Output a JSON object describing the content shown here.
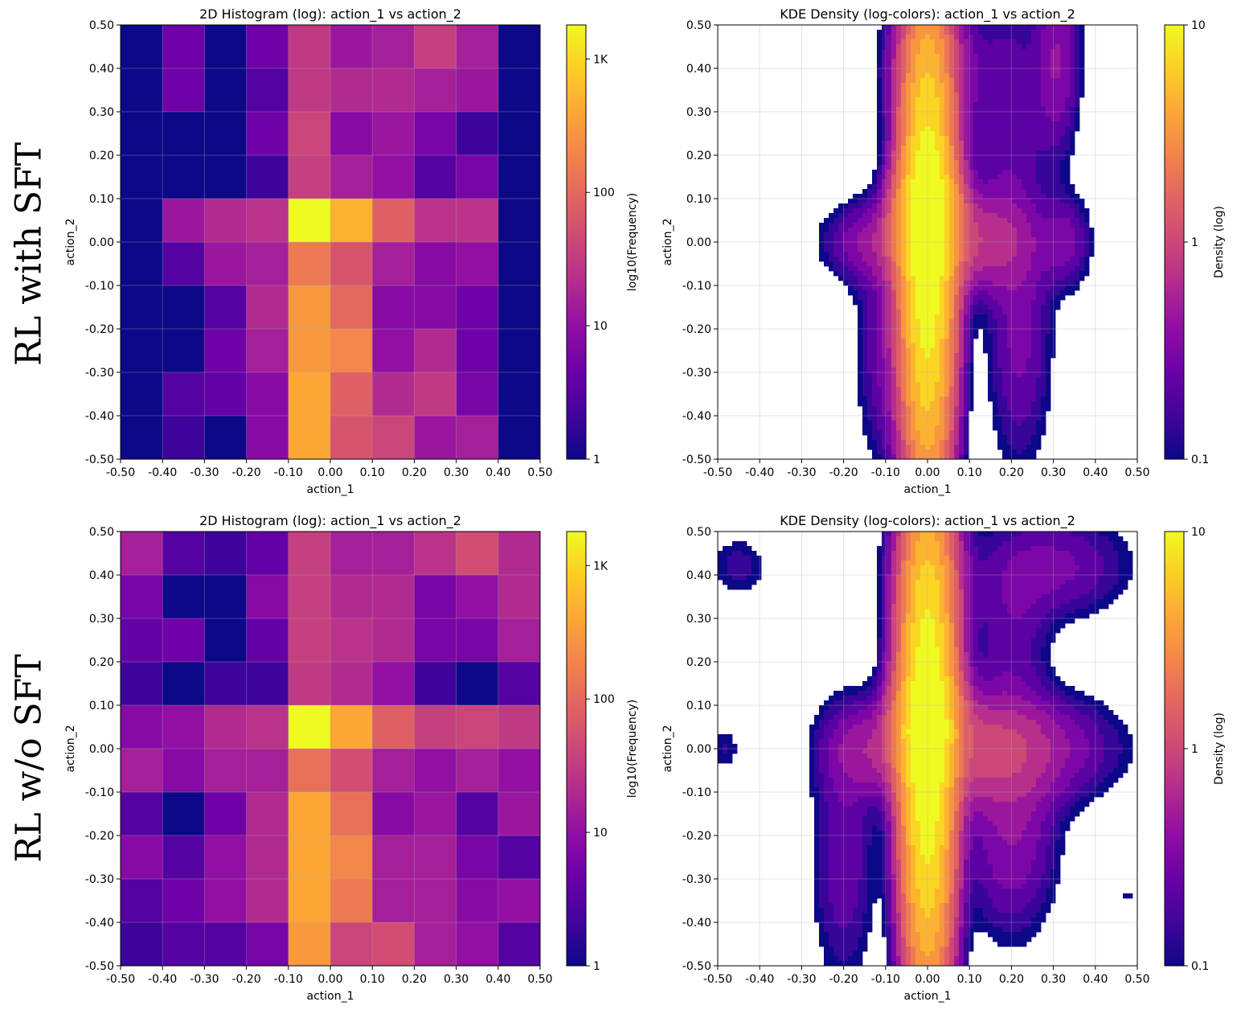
{
  "rows": [
    {
      "label": "RL with SFT"
    },
    {
      "label": "RL w/o SFT"
    }
  ],
  "colormap": "plasma",
  "chart_data": [
    {
      "type": "heatmap",
      "title": "2D Histogram (log): action_1 vs action_2",
      "xlabel": "action_1",
      "ylabel": "action_2",
      "xlim": [
        -0.5,
        0.5
      ],
      "ylim": [
        -0.5,
        0.5
      ],
      "x_ticks": [
        "-0.50",
        "-0.40",
        "-0.30",
        "-0.20",
        "-0.10",
        "0.00",
        "0.10",
        "0.20",
        "0.30",
        "0.40",
        "0.50"
      ],
      "y_ticks": [
        "0.50",
        "0.40",
        "0.30",
        "0.20",
        "0.10",
        "0.00",
        "-0.10",
        "-0.20",
        "-0.30",
        "-0.40",
        "-0.50"
      ],
      "grid": true,
      "colorbar": {
        "label": "log10(Frequency)",
        "scale": "log",
        "ticks": [
          "1",
          "10",
          "100",
          "1K"
        ],
        "range": [
          1,
          1800
        ]
      },
      "x_bins": [
        -0.45,
        -0.35,
        -0.25,
        -0.15,
        -0.05,
        0.05,
        0.15,
        0.25,
        0.35,
        0.45
      ],
      "y_bins_top_to_bottom": [
        0.45,
        0.35,
        0.25,
        0.15,
        0.05,
        -0.05,
        -0.15,
        -0.25,
        -0.35,
        -0.45
      ],
      "counts": [
        [
          1,
          5,
          1,
          5,
          30,
          12,
          15,
          35,
          15,
          1
        ],
        [
          1,
          5,
          1,
          3,
          30,
          20,
          20,
          15,
          12,
          1
        ],
        [
          1,
          1,
          1,
          5,
          40,
          8,
          12,
          6,
          2,
          1
        ],
        [
          1,
          1,
          1,
          2,
          35,
          15,
          10,
          3,
          6,
          1
        ],
        [
          1,
          12,
          20,
          25,
          1800,
          500,
          80,
          25,
          25,
          1
        ],
        [
          1,
          3,
          12,
          15,
          150,
          60,
          15,
          8,
          10,
          1
        ],
        [
          1,
          1,
          3,
          20,
          300,
          100,
          8,
          8,
          5,
          1
        ],
        [
          1,
          1,
          5,
          15,
          300,
          200,
          10,
          20,
          5,
          1
        ],
        [
          1,
          3,
          4,
          8,
          400,
          80,
          20,
          30,
          6,
          1
        ],
        [
          1,
          2,
          1,
          8,
          400,
          60,
          40,
          12,
          15,
          1
        ]
      ]
    },
    {
      "type": "heatmap",
      "title": "KDE Density (log-colors): action_1 vs action_2",
      "xlabel": "action_1",
      "ylabel": "action_2",
      "xlim": [
        -0.5,
        0.5
      ],
      "ylim": [
        -0.5,
        0.5
      ],
      "x_ticks": [
        "-0.50",
        "-0.40",
        "-0.30",
        "-0.20",
        "-0.10",
        "0.00",
        "0.10",
        "0.20",
        "0.30",
        "0.40",
        "0.50"
      ],
      "y_ticks": [
        "0.50",
        "0.40",
        "0.30",
        "0.20",
        "0.10",
        "0.00",
        "-0.10",
        "-0.20",
        "-0.30",
        "-0.40",
        "-0.50"
      ],
      "grid": true,
      "colorbar": {
        "label": "Density (log)",
        "scale": "log",
        "ticks": [
          "0.1",
          "1",
          "10"
        ],
        "range": [
          0.1,
          10
        ]
      },
      "kde_components": [
        {
          "x": 0.0,
          "y": 0.0,
          "sx": 0.035,
          "sy": 0.32,
          "w": 14
        },
        {
          "x": 0.0,
          "y": 0.05,
          "sx": 0.045,
          "sy": 0.08,
          "w": 6
        },
        {
          "x": -0.12,
          "y": 0.0,
          "sx": 0.08,
          "sy": 0.06,
          "w": 0.5
        },
        {
          "x": 0.12,
          "y": 0.0,
          "sx": 0.08,
          "sy": 0.07,
          "w": 0.8
        },
        {
          "x": -0.09,
          "y": -0.25,
          "sx": 0.05,
          "sy": 0.18,
          "w": 0.35
        },
        {
          "x": 0.22,
          "y": -0.22,
          "sx": 0.05,
          "sy": 0.2,
          "w": 0.35
        },
        {
          "x": 0.33,
          "y": 0.0,
          "sx": 0.04,
          "sy": 0.07,
          "w": 0.35
        },
        {
          "x": 0.31,
          "y": 0.42,
          "sx": 0.035,
          "sy": 0.14,
          "w": 0.45
        },
        {
          "x": 0.19,
          "y": 0.3,
          "sx": 0.06,
          "sy": 0.2,
          "w": 0.3
        },
        {
          "x": -0.06,
          "y": 0.4,
          "sx": 0.04,
          "sy": 0.1,
          "w": 0.3
        },
        {
          "x": 0.07,
          "y": 0.4,
          "sx": 0.04,
          "sy": 0.1,
          "w": 0.35
        }
      ]
    },
    {
      "type": "heatmap",
      "title": "2D Histogram (log): action_1 vs action_2",
      "xlabel": "action_1",
      "ylabel": "action_2",
      "xlim": [
        -0.5,
        0.5
      ],
      "ylim": [
        -0.5,
        0.5
      ],
      "x_ticks": [
        "-0.50",
        "-0.40",
        "-0.30",
        "-0.20",
        "-0.10",
        "0.00",
        "0.10",
        "0.20",
        "0.30",
        "0.40",
        "0.50"
      ],
      "y_ticks": [
        "0.50",
        "0.40",
        "0.30",
        "0.20",
        "0.10",
        "0.00",
        "-0.10",
        "-0.20",
        "-0.30",
        "-0.40",
        "-0.50"
      ],
      "grid": true,
      "colorbar": {
        "label": "log10(Frequency)",
        "scale": "log",
        "ticks": [
          "1",
          "10",
          "100",
          "1K"
        ],
        "range": [
          1,
          1800
        ]
      },
      "x_bins": [
        -0.45,
        -0.35,
        -0.25,
        -0.15,
        -0.05,
        0.05,
        0.15,
        0.25,
        0.35,
        0.45
      ],
      "y_bins_top_to_bottom": [
        0.45,
        0.35,
        0.25,
        0.15,
        0.05,
        -0.05,
        -0.15,
        -0.25,
        -0.35,
        -0.45
      ],
      "counts": [
        [
          15,
          3,
          2,
          4,
          35,
          15,
          15,
          25,
          50,
          20
        ],
        [
          6,
          1,
          1,
          8,
          35,
          20,
          20,
          6,
          10,
          20
        ],
        [
          4,
          5,
          1,
          4,
          35,
          25,
          20,
          6,
          6,
          15
        ],
        [
          2,
          1,
          2,
          2,
          30,
          20,
          10,
          2,
          1,
          3
        ],
        [
          8,
          10,
          20,
          25,
          1800,
          400,
          80,
          35,
          40,
          30
        ],
        [
          15,
          8,
          15,
          15,
          120,
          50,
          15,
          10,
          15,
          10
        ],
        [
          3,
          1,
          5,
          20,
          400,
          120,
          8,
          12,
          3,
          12
        ],
        [
          8,
          3,
          10,
          20,
          400,
          200,
          15,
          15,
          6,
          3
        ],
        [
          3,
          5,
          10,
          20,
          400,
          150,
          15,
          15,
          8,
          10
        ],
        [
          2,
          3,
          3,
          6,
          300,
          40,
          50,
          15,
          10,
          3
        ]
      ]
    },
    {
      "type": "heatmap",
      "title": "KDE Density (log-colors): action_1 vs action_2",
      "xlabel": "action_1",
      "ylabel": "action_2",
      "xlim": [
        -0.5,
        0.5
      ],
      "ylim": [
        -0.5,
        0.5
      ],
      "x_ticks": [
        "-0.50",
        "-0.40",
        "-0.30",
        "-0.20",
        "-0.10",
        "0.00",
        "0.10",
        "0.20",
        "0.30",
        "0.40",
        "0.50"
      ],
      "y_ticks": [
        "0.50",
        "0.40",
        "0.30",
        "0.20",
        "0.10",
        "0.00",
        "-0.10",
        "-0.20",
        "-0.30",
        "-0.40",
        "-0.50"
      ],
      "grid": true,
      "colorbar": {
        "label": "Density (log)",
        "scale": "log",
        "ticks": [
          "0.1",
          "1",
          "10"
        ],
        "range": [
          0.1,
          10
        ]
      },
      "kde_components": [
        {
          "x": 0.0,
          "y": 0.0,
          "sx": 0.035,
          "sy": 0.32,
          "w": 14
        },
        {
          "x": 0.0,
          "y": 0.05,
          "sx": 0.045,
          "sy": 0.08,
          "w": 6
        },
        {
          "x": 0.0,
          "y": 0.35,
          "sx": 0.05,
          "sy": 0.15,
          "w": 1.5
        },
        {
          "x": -0.12,
          "y": 0.0,
          "sx": 0.08,
          "sy": 0.07,
          "w": 0.6
        },
        {
          "x": 0.13,
          "y": 0.0,
          "sx": 0.1,
          "sy": 0.08,
          "w": 0.9
        },
        {
          "x": 0.3,
          "y": 0.0,
          "sx": 0.12,
          "sy": 0.08,
          "w": 0.35
        },
        {
          "x": -0.2,
          "y": -0.25,
          "sx": 0.05,
          "sy": 0.2,
          "w": 0.3
        },
        {
          "x": 0.2,
          "y": -0.2,
          "sx": 0.07,
          "sy": 0.15,
          "w": 0.45
        },
        {
          "x": 0.3,
          "y": 0.42,
          "sx": 0.12,
          "sy": 0.08,
          "w": 0.35
        },
        {
          "x": 0.2,
          "y": 0.25,
          "sx": 0.06,
          "sy": 0.12,
          "w": 0.25
        },
        {
          "x": -0.45,
          "y": 0.42,
          "sx": 0.05,
          "sy": 0.05,
          "w": 0.18
        },
        {
          "x": -0.48,
          "y": 0.0,
          "sx": 0.025,
          "sy": 0.04,
          "w": 0.15
        },
        {
          "x": 0.48,
          "y": -0.34,
          "sx": 0.01,
          "sy": 0.01,
          "w": 0.15
        }
      ]
    }
  ]
}
